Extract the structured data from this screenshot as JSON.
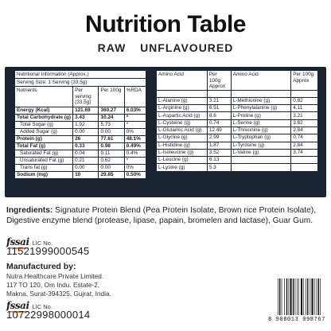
{
  "header": {
    "title": "Nutrition Table",
    "subtitle": "RAW  UNFLAVOURED"
  },
  "nutrition": {
    "caption": "Nutritional Information (Approx.)",
    "serving": "Serving Size: 1 Serving (33.5g)",
    "col_nutrients": "Nutrients",
    "col_serving": "Per serving (33.5g)",
    "col_100g": "Per 100g",
    "col_rda": "%RDA",
    "rows": [
      {
        "name": "Energy (Kcal)",
        "serving": "121.69",
        "per100": "360.27",
        "rda": "6.03%",
        "bold": true,
        "indent": false
      },
      {
        "name": "Total Carbohydrate (g)",
        "serving": "3.43",
        "per100": "10.24",
        "rda": "*",
        "bold": true,
        "indent": false
      },
      {
        "name": "Total Sugar (g)",
        "serving": "1.92",
        "per100": "5.73",
        "rda": "*",
        "bold": false,
        "indent": true
      },
      {
        "name": "Added Sugar (g)",
        "serving": "0.00",
        "per100": "0.00",
        "rda": "0%",
        "bold": false,
        "indent": true
      },
      {
        "name": "Protein (g)",
        "serving": "26",
        "per100": "77.61",
        "rda": "48.1%",
        "bold": true,
        "indent": false
      },
      {
        "name": "Total Fat (g)",
        "serving": "0.33",
        "per100": "0.98",
        "rda": "0.49%",
        "bold": true,
        "indent": false
      },
      {
        "name": "Saturated Fat (g)",
        "serving": "0.04",
        "per100": "0.11",
        "rda": "0.4%",
        "bold": false,
        "indent": true
      },
      {
        "name": "Unsaturated Fat (g)",
        "serving": "0.21",
        "per100": "0.62",
        "rda": "*",
        "bold": false,
        "indent": true
      },
      {
        "name": "Trans fat (g)",
        "serving": "0.00",
        "per100": "0.00",
        "rda": "0%",
        "bold": false,
        "indent": true
      },
      {
        "name": "Sodium (mg)",
        "serving": "10",
        "per100": "29.85",
        "rda": "0.50%",
        "bold": true,
        "indent": false
      }
    ]
  },
  "amino": {
    "col_acid": "Amino Acid",
    "col_per100": "Per 100g Approx",
    "left": [
      {
        "name": "L-Alanine (g)",
        "value": "3.21"
      },
      {
        "name": "L-Arginine (g)",
        "value": "6.51"
      },
      {
        "name": "L-Aspartic Acid (g)",
        "value": "8.6"
      },
      {
        "name": "L-Cysteine (g)",
        "value": "0.74"
      },
      {
        "name": "L-Glutamic Acid (g)",
        "value": "12.49"
      },
      {
        "name": "L-Glycine (g)",
        "value": "2.99"
      },
      {
        "name": "L-Histidine (g)",
        "value": "1.87"
      },
      {
        "name": "L-Isoleucine (g)",
        "value": "3.52"
      },
      {
        "name": "L-Leucine (g)",
        "value": "6.13"
      },
      {
        "name": "L-Lysine (g)",
        "value": "5.3"
      }
    ],
    "right": [
      {
        "name": "L-Methionine (g)",
        "value": "0.82"
      },
      {
        "name": "L-Phenylalanine (g)",
        "value": "4.11"
      },
      {
        "name": "L-Proline (g)",
        "value": "3.21"
      },
      {
        "name": "L-Serine (g)",
        "value": "3.82"
      },
      {
        "name": "L-Threonine (g)",
        "value": "2.84"
      },
      {
        "name": "L-Tryptophan (g)",
        "value": "0.74"
      },
      {
        "name": "L-Tyrosine (g)",
        "value": "2.84"
      },
      {
        "name": "L-Valine (g)",
        "value": "3.74"
      },
      {
        "name": "",
        "value": ""
      },
      {
        "name": "",
        "value": ""
      }
    ]
  },
  "ingredients": {
    "label": "Ingredients:",
    "text": "Signature Protein Blend (Pea Protein Isolate, Brown rice Protein Isolate), Digestive enzyme blend (protease, lipase, papain, bromelen and lactase), Guar Gum."
  },
  "license": {
    "logo": "fssai",
    "label": "LIC No.",
    "number_1": "11521999000545",
    "number_2": "10722998000014"
  },
  "manufacturer": {
    "title": "Manufactured by:",
    "lines": [
      "Nutra Healthcare Private Limited.",
      "117 TO 120, Om Indu. Estate-2,",
      "Makna, Surat-394325, Gujrat, India."
    ]
  },
  "barcode": {
    "number": "8 908013 098767"
  },
  "colors": {
    "panel": "#1b2330",
    "fssai_accent": "#e8731a"
  }
}
